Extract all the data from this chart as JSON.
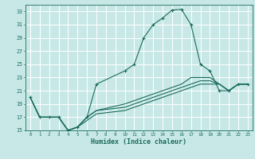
{
  "xlabel": "Humidex (Indice chaleur)",
  "background_color": "#c8e8e8",
  "grid_color": "#ffffff",
  "line_color": "#1a6b5a",
  "xlim": [
    -0.5,
    23.5
  ],
  "ylim": [
    15,
    34
  ],
  "xticks": [
    0,
    1,
    2,
    3,
    4,
    5,
    6,
    7,
    8,
    9,
    10,
    11,
    12,
    13,
    14,
    15,
    16,
    17,
    18,
    19,
    20,
    21,
    22,
    23
  ],
  "yticks": [
    15,
    17,
    19,
    21,
    23,
    25,
    27,
    29,
    31,
    33
  ],
  "lines": [
    {
      "x": [
        0,
        1,
        2,
        3,
        4,
        5,
        6,
        7,
        10,
        11,
        12,
        13,
        14,
        15,
        16,
        17,
        18,
        19,
        20,
        21,
        22,
        23
      ],
      "y": [
        20,
        17,
        17,
        17,
        15,
        15.5,
        17,
        22,
        24,
        25,
        29,
        31,
        32,
        33.2,
        33.3,
        31,
        25,
        24,
        21,
        21,
        22,
        22
      ],
      "marker": "+"
    },
    {
      "x": [
        0,
        1,
        2,
        3,
        4,
        5,
        6,
        7,
        10,
        11,
        12,
        13,
        14,
        15,
        16,
        17,
        18,
        19,
        20,
        21,
        22,
        23
      ],
      "y": [
        20,
        17,
        17,
        17,
        15,
        15.5,
        17,
        18,
        19,
        19.5,
        20,
        20.5,
        21,
        21.5,
        22,
        23,
        23,
        23,
        22,
        21,
        22,
        22
      ],
      "marker": null
    },
    {
      "x": [
        0,
        1,
        2,
        3,
        4,
        5,
        6,
        7,
        10,
        11,
        12,
        13,
        14,
        15,
        16,
        17,
        18,
        19,
        20,
        21,
        22,
        23
      ],
      "y": [
        20,
        17,
        17,
        17,
        15,
        15.5,
        17,
        18,
        18.5,
        19,
        19.5,
        20,
        20.5,
        21,
        21.5,
        22,
        22.5,
        22.5,
        22,
        21,
        22,
        22
      ],
      "marker": null
    },
    {
      "x": [
        0,
        1,
        2,
        3,
        4,
        5,
        6,
        7,
        10,
        11,
        12,
        13,
        14,
        15,
        16,
        17,
        18,
        19,
        20,
        21,
        22,
        23
      ],
      "y": [
        20,
        17,
        17,
        17,
        15,
        15.5,
        16.5,
        17.5,
        18,
        18.5,
        19,
        19.5,
        20,
        20.5,
        21,
        21.5,
        22,
        22,
        22,
        21,
        22,
        22
      ],
      "marker": null
    }
  ]
}
